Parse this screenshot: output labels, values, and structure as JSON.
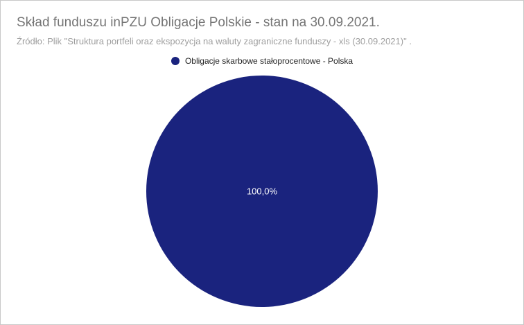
{
  "header": {
    "title": "Skład funduszu inPZU Obligacje Polskie - stan na 30.09.2021.",
    "subtitle": "Źródło: Plik \"Struktura portfeli oraz ekspozycja na waluty zagraniczne funduszy - xls (30.09.2021)\" ."
  },
  "chart_data": {
    "type": "pie",
    "title": "Skład funduszu inPZU Obligacje Polskie - stan na 30.09.2021.",
    "subtitle": "Źródło: Plik \"Struktura portfeli oraz ekspozycja na waluty zagraniczne funduszy - xls (30.09.2021)\" .",
    "legend_position": "top",
    "slices": [
      {
        "label": "Obligacje skarbowe stałoprocentowe - Polska",
        "value": 100.0,
        "display": "100,0%",
        "color": "#1a237e"
      }
    ]
  }
}
